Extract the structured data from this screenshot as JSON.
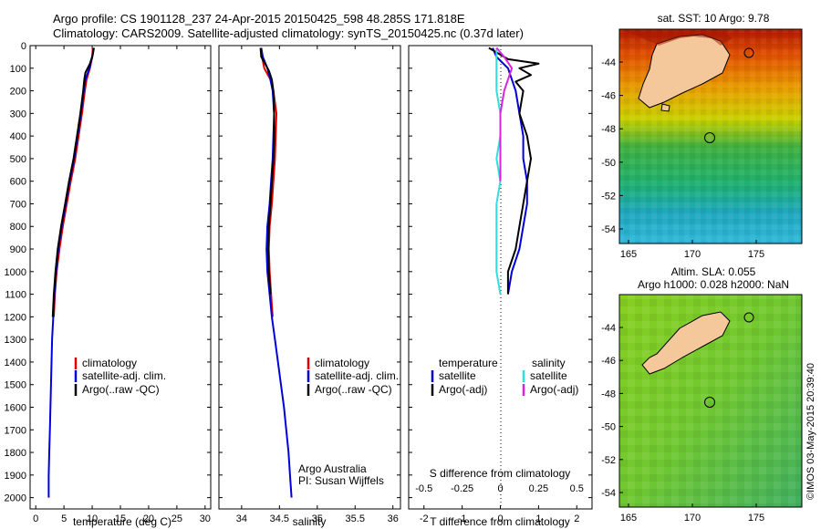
{
  "title_line1": "Argo profile: CS 1901128_237 24-Apr-2015 20150425_598 48.285S 171.818E",
  "title_line2": "Climatology: CARS2009. Satellite-adjusted climatology: synTS_20150425.nc (0.37d later)",
  "colors": {
    "climatology": "#e00000",
    "satellite": "#0000dd",
    "argo": "#000000",
    "sat_salinity": "#33dddd",
    "argo_salinity": "#dd22dd"
  },
  "chart_data": [
    {
      "type": "line",
      "xlabel": "temperature (deg C)",
      "xlim": [
        -1,
        31
      ],
      "ylim": [
        0,
        2050
      ],
      "y_ticks": [
        0,
        100,
        200,
        300,
        400,
        500,
        600,
        700,
        800,
        900,
        1000,
        1100,
        1200,
        1300,
        1400,
        1500,
        1600,
        1700,
        1800,
        1900,
        2000
      ],
      "x_ticks": [
        0,
        5,
        10,
        15,
        20,
        25,
        30
      ],
      "legend": [
        "climatology",
        "satellite-adj. clim.",
        "Argo(..raw -QC)"
      ],
      "series": [
        {
          "name": "climatology",
          "color_key": "climatology",
          "points": [
            [
              10.1,
              10
            ],
            [
              10,
              50
            ],
            [
              9.6,
              100
            ],
            [
              9,
              150
            ],
            [
              8.7,
              200
            ],
            [
              8.2,
              300
            ],
            [
              7.6,
              400
            ],
            [
              7,
              500
            ],
            [
              6.2,
              600
            ],
            [
              5.5,
              700
            ],
            [
              4.8,
              800
            ],
            [
              4.2,
              900
            ],
            [
              3.7,
              1000
            ],
            [
              3.4,
              1100
            ],
            [
              3.2,
              1200
            ]
          ]
        },
        {
          "name": "satellite-adj. clim.",
          "color_key": "satellite",
          "points": [
            [
              10.3,
              10
            ],
            [
              10,
              50
            ],
            [
              9.5,
              100
            ],
            [
              8.8,
              150
            ],
            [
              8.5,
              200
            ],
            [
              8,
              300
            ],
            [
              7.4,
              400
            ],
            [
              6.8,
              500
            ],
            [
              6,
              600
            ],
            [
              5.3,
              700
            ],
            [
              4.6,
              800
            ],
            [
              4,
              900
            ],
            [
              3.6,
              1000
            ],
            [
              3.3,
              1100
            ],
            [
              3.1,
              1200
            ],
            [
              2.9,
              1300
            ],
            [
              2.8,
              1400
            ],
            [
              2.7,
              1500
            ],
            [
              2.6,
              1600
            ],
            [
              2.5,
              1700
            ],
            [
              2.4,
              1800
            ],
            [
              2.3,
              1900
            ],
            [
              2.3,
              2000
            ]
          ]
        },
        {
          "name": "Argo(..raw -QC)",
          "color_key": "argo",
          "points": [
            [
              10.3,
              10
            ],
            [
              10.1,
              40
            ],
            [
              9.6,
              80
            ],
            [
              8.8,
              120
            ],
            [
              8.6,
              150
            ],
            [
              8.4,
              200
            ],
            [
              7.9,
              300
            ],
            [
              7.3,
              400
            ],
            [
              6.7,
              500
            ],
            [
              5.9,
              600
            ],
            [
              5.2,
              700
            ],
            [
              4.5,
              800
            ],
            [
              3.9,
              900
            ],
            [
              3.5,
              1000
            ],
            [
              3.2,
              1100
            ],
            [
              3,
              1200
            ]
          ]
        }
      ]
    },
    {
      "type": "line",
      "xlabel": "salinity",
      "xlim": [
        33.7,
        36.1
      ],
      "ylim": [
        0,
        2050
      ],
      "x_ticks": [
        34,
        34.5,
        35,
        35.5,
        36
      ],
      "legend": [
        "climatology",
        "satellite-adj. clim.",
        "Argo(..raw -QC)"
      ],
      "annotation": [
        "Argo Australia",
        "PI: Susan Wijffels"
      ],
      "series": [
        {
          "name": "climatology",
          "color_key": "climatology",
          "points": [
            [
              34.26,
              10
            ],
            [
              34.27,
              50
            ],
            [
              34.3,
              100
            ],
            [
              34.38,
              150
            ],
            [
              34.42,
              200
            ],
            [
              34.44,
              250
            ],
            [
              34.46,
              300
            ],
            [
              34.45,
              400
            ],
            [
              34.44,
              500
            ],
            [
              34.42,
              600
            ],
            [
              34.4,
              700
            ],
            [
              34.37,
              800
            ],
            [
              34.36,
              900
            ],
            [
              34.37,
              1000
            ],
            [
              34.39,
              1100
            ],
            [
              34.41,
              1200
            ]
          ]
        },
        {
          "name": "satellite-adj. clim.",
          "color_key": "satellite",
          "points": [
            [
              34.26,
              10
            ],
            [
              34.28,
              50
            ],
            [
              34.34,
              100
            ],
            [
              34.38,
              150
            ],
            [
              34.41,
              200
            ],
            [
              34.43,
              300
            ],
            [
              34.42,
              400
            ],
            [
              34.41,
              500
            ],
            [
              34.39,
              600
            ],
            [
              34.37,
              700
            ],
            [
              34.34,
              800
            ],
            [
              34.33,
              900
            ],
            [
              34.34,
              1000
            ],
            [
              34.37,
              1100
            ],
            [
              34.4,
              1200
            ],
            [
              34.44,
              1300
            ],
            [
              34.48,
              1400
            ],
            [
              34.52,
              1500
            ],
            [
              34.56,
              1600
            ],
            [
              34.59,
              1700
            ],
            [
              34.62,
              1800
            ],
            [
              34.64,
              1900
            ],
            [
              34.66,
              2000
            ]
          ]
        },
        {
          "name": "Argo(..raw -QC)",
          "color_key": "argo",
          "points": [
            [
              34.25,
              10
            ],
            [
              34.26,
              50
            ],
            [
              34.31,
              80
            ],
            [
              34.36,
              110
            ],
            [
              34.4,
              150
            ],
            [
              34.42,
              200
            ],
            [
              34.43,
              300
            ],
            [
              34.43,
              400
            ],
            [
              34.42,
              500
            ],
            [
              34.4,
              600
            ],
            [
              34.38,
              700
            ],
            [
              34.36,
              800
            ],
            [
              34.35,
              900
            ],
            [
              34.36,
              1000
            ],
            [
              34.38,
              1100
            ]
          ]
        }
      ]
    },
    {
      "type": "line",
      "xlabel": "T difference from climatology",
      "xlabel_top": "S difference from climatology",
      "xlim": [
        -2.4,
        2.4
      ],
      "ylim": [
        0,
        2050
      ],
      "t_ticks": [
        -2,
        -1,
        0,
        1,
        2
      ],
      "s_ticks": [
        "-0.5",
        "-0.25",
        "0",
        "0.25",
        "0.5"
      ],
      "s_tick_positions": [
        -2,
        -1,
        0,
        1,
        2
      ],
      "legend_groups": [
        {
          "heading": "temperature",
          "items": [
            "satellite",
            "Argo(-adj)"
          ]
        },
        {
          "heading": "salinity",
          "items": [
            "satellite",
            "Argo(-adj)"
          ]
        }
      ],
      "series": [
        {
          "name": "temperature satellite",
          "color_key": "satellite",
          "points": [
            [
              -0.2,
              10
            ],
            [
              -0.1,
              50
            ],
            [
              0.2,
              100
            ],
            [
              0.3,
              150
            ],
            [
              0.4,
              200
            ],
            [
              0.5,
              300
            ],
            [
              0.6,
              400
            ],
            [
              0.6,
              500
            ],
            [
              0.7,
              600
            ],
            [
              0.7,
              700
            ],
            [
              0.6,
              800
            ],
            [
              0.5,
              900
            ],
            [
              0.3,
              1000
            ],
            [
              0.2,
              1100
            ]
          ]
        },
        {
          "name": "temperature Argo(-adj)",
          "color_key": "argo",
          "points": [
            [
              -0.3,
              10
            ],
            [
              0.2,
              60
            ],
            [
              1,
              80
            ],
            [
              0.5,
              100
            ],
            [
              0.8,
              130
            ],
            [
              0.4,
              160
            ],
            [
              0.6,
              200
            ],
            [
              0.5,
              300
            ],
            [
              0.7,
              400
            ],
            [
              0.8,
              500
            ],
            [
              0.7,
              600
            ],
            [
              0.6,
              700
            ],
            [
              0.5,
              800
            ],
            [
              0.4,
              900
            ],
            [
              0.2,
              1000
            ],
            [
              0.2,
              1100
            ]
          ]
        },
        {
          "name": "salinity satellite",
          "color_key": "sat_salinity",
          "points": [
            [
              -0.1,
              10
            ],
            [
              -0.1,
              100
            ],
            [
              -0.1,
              200
            ],
            [
              0,
              300
            ],
            [
              0,
              400
            ],
            [
              -0.1,
              500
            ],
            [
              0,
              600
            ],
            [
              -0.1,
              700
            ],
            [
              -0.1,
              800
            ],
            [
              -0.1,
              900
            ],
            [
              -0.1,
              1000
            ],
            [
              0,
              1100
            ]
          ]
        },
        {
          "name": "salinity Argo(-adj)",
          "color_key": "argo_salinity",
          "points": [
            [
              -0.1,
              10
            ],
            [
              0.1,
              50
            ],
            [
              0.3,
              100
            ],
            [
              0.2,
              150
            ],
            [
              0.1,
              200
            ],
            [
              0,
              300
            ],
            [
              0,
              400
            ],
            [
              0,
              500
            ],
            [
              0,
              600
            ]
          ]
        }
      ]
    }
  ],
  "maps": [
    {
      "title": "sat. SST: 10 Argo: 9.78",
      "lat_ticks": [
        "-44",
        "-46",
        "-48",
        "-50",
        "-52",
        "-54"
      ],
      "lon_ticks": [
        "165",
        "170",
        "175"
      ]
    },
    {
      "title_line1": "Altim. SLA: 0.055",
      "title_line2": "Argo h1000: 0.028 h2000: NaN",
      "lat_ticks": [
        "-44",
        "-46",
        "-48",
        "-50",
        "-52",
        "-54"
      ],
      "lon_ticks": [
        "165",
        "170",
        "175"
      ]
    }
  ],
  "watermark": "©IMOS 03-May-2015 20:39:40"
}
